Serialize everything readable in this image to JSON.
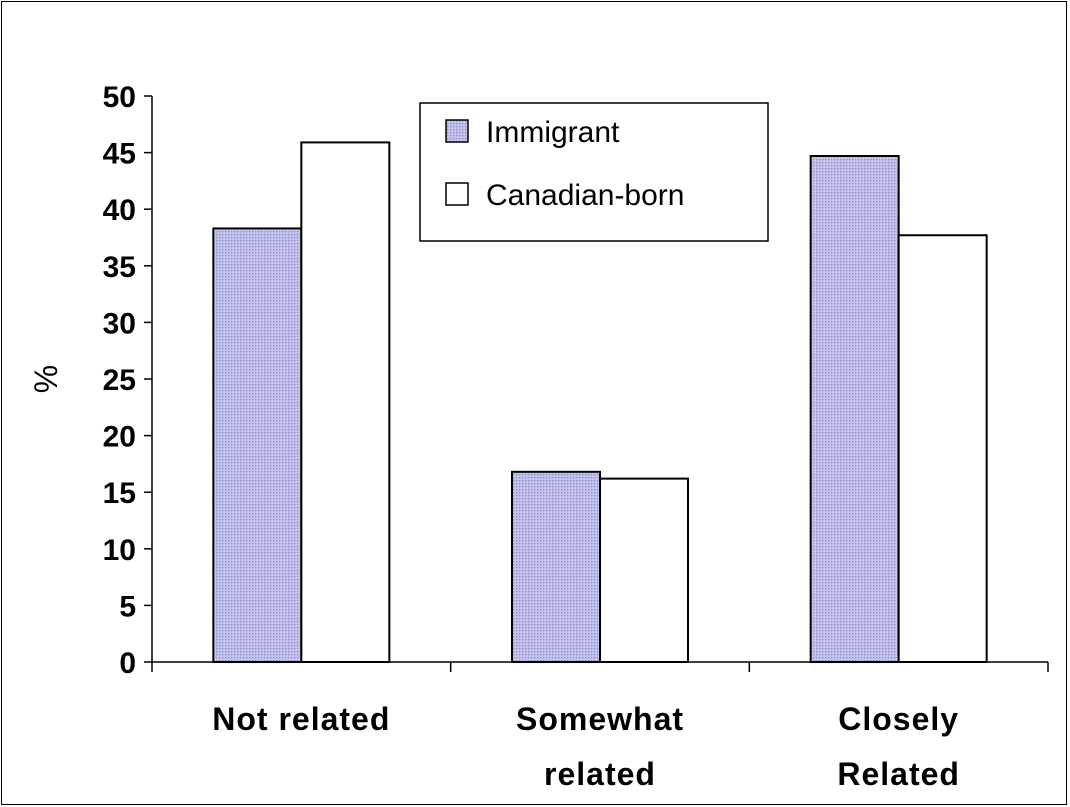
{
  "chart_data": {
    "type": "bar",
    "categories": [
      [
        "Not related"
      ],
      [
        "Somewhat",
        "related"
      ],
      [
        "Closely",
        "Related"
      ]
    ],
    "series": [
      {
        "name": "Immigrant",
        "values": [
          38.3,
          16.8,
          44.7
        ],
        "color": "#b7b7e6",
        "pattern": "dotted"
      },
      {
        "name": "Canadian-born",
        "values": [
          45.9,
          16.2,
          37.7
        ],
        "color": "#ffffff"
      }
    ],
    "ylabel": "%",
    "ylim": [
      0,
      50
    ],
    "yticks": [
      "0",
      "5",
      "10",
      "15",
      "20",
      "25",
      "30",
      "35",
      "40",
      "45",
      "50"
    ],
    "legend": "top-center",
    "grid": false
  }
}
